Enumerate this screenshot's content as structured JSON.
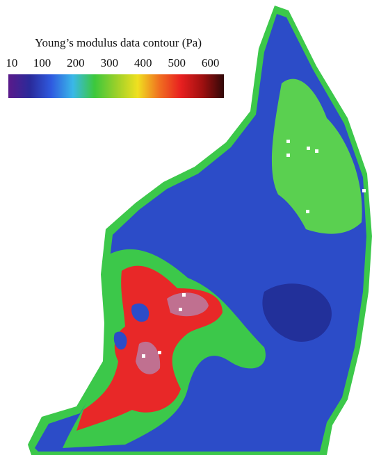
{
  "chart_data": {
    "type": "heatmap",
    "colorbar": {
      "title": "Young’s modulus data contour (Pa)",
      "ticks": [
        10,
        100,
        200,
        300,
        400,
        500,
        600
      ],
      "lim": [
        0,
        640
      ],
      "colormap": [
        "#5a1a8a",
        "#2a2a9a",
        "#2f5be0",
        "#3ab8e8",
        "#3cc83c",
        "#9ad02a",
        "#f0e020",
        "#f07020",
        "#e82020",
        "#a01010",
        "#300808"
      ]
    }
  }
}
